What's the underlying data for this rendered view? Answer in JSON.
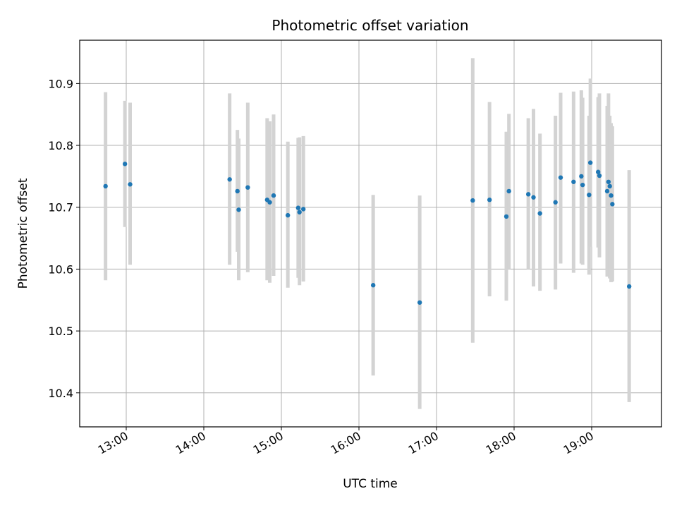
{
  "chart_data": {
    "type": "scatter",
    "title": "Photometric offset variation",
    "xlabel": "UTC time",
    "ylabel": "Photometric offset",
    "x_axis_type": "time",
    "xlim": [
      "12:24",
      "19:54"
    ],
    "ylim": [
      10.345,
      10.97
    ],
    "grid": true,
    "marker_color": "#1f77b4",
    "errorbar_color": "#d3d3d3",
    "x_ticks": [
      {
        "value": "13:00",
        "label": "13:00"
      },
      {
        "value": "14:00",
        "label": "14:00"
      },
      {
        "value": "15:00",
        "label": "15:00"
      },
      {
        "value": "16:00",
        "label": "16:00"
      },
      {
        "value": "17:00",
        "label": "17:00"
      },
      {
        "value": "18:00",
        "label": "18:00"
      },
      {
        "value": "19:00",
        "label": "19:00"
      }
    ],
    "y_ticks": [
      {
        "value": 10.4,
        "label": "10.4"
      },
      {
        "value": 10.5,
        "label": "10.5"
      },
      {
        "value": 10.6,
        "label": "10.6"
      },
      {
        "value": 10.7,
        "label": "10.7"
      },
      {
        "value": 10.8,
        "label": "10.8"
      },
      {
        "value": 10.9,
        "label": "10.9"
      }
    ],
    "points": [
      {
        "x": "12:44",
        "y": 10.734,
        "ylow": 10.582,
        "yhigh": 10.886
      },
      {
        "x": "12:59",
        "y": 10.77,
        "ylow": 10.668,
        "yhigh": 10.872
      },
      {
        "x": "13:03",
        "y": 10.737,
        "ylow": 10.607,
        "yhigh": 10.869
      },
      {
        "x": "14:20",
        "y": 10.745,
        "ylow": 10.607,
        "yhigh": 10.884
      },
      {
        "x": "14:26",
        "y": 10.726,
        "ylow": 10.628,
        "yhigh": 10.825
      },
      {
        "x": "14:27",
        "y": 10.696,
        "ylow": 10.582,
        "yhigh": 10.811
      },
      {
        "x": "14:34",
        "y": 10.732,
        "ylow": 10.595,
        "yhigh": 10.869
      },
      {
        "x": "14:49",
        "y": 10.712,
        "ylow": 10.582,
        "yhigh": 10.844
      },
      {
        "x": "14:51",
        "y": 10.708,
        "ylow": 10.578,
        "yhigh": 10.839
      },
      {
        "x": "14:54",
        "y": 10.719,
        "ylow": 10.589,
        "yhigh": 10.85
      },
      {
        "x": "15:05",
        "y": 10.687,
        "ylow": 10.57,
        "yhigh": 10.806
      },
      {
        "x": "15:13",
        "y": 10.699,
        "ylow": 10.586,
        "yhigh": 10.812
      },
      {
        "x": "15:14",
        "y": 10.692,
        "ylow": 10.574,
        "yhigh": 10.813
      },
      {
        "x": "15:17",
        "y": 10.697,
        "ylow": 10.58,
        "yhigh": 10.815
      },
      {
        "x": "16:11",
        "y": 10.574,
        "ylow": 10.428,
        "yhigh": 10.72
      },
      {
        "x": "16:47",
        "y": 10.546,
        "ylow": 10.374,
        "yhigh": 10.719
      },
      {
        "x": "17:28",
        "y": 10.711,
        "ylow": 10.481,
        "yhigh": 10.941
      },
      {
        "x": "17:41",
        "y": 10.712,
        "ylow": 10.556,
        "yhigh": 10.87
      },
      {
        "x": "17:54",
        "y": 10.685,
        "ylow": 10.549,
        "yhigh": 10.822
      },
      {
        "x": "17:56",
        "y": 10.726,
        "ylow": 10.6,
        "yhigh": 10.851
      },
      {
        "x": "18:11",
        "y": 10.721,
        "ylow": 10.6,
        "yhigh": 10.844
      },
      {
        "x": "18:15",
        "y": 10.716,
        "ylow": 10.572,
        "yhigh": 10.859
      },
      {
        "x": "18:20",
        "y": 10.69,
        "ylow": 10.565,
        "yhigh": 10.819
      },
      {
        "x": "18:32",
        "y": 10.708,
        "ylow": 10.567,
        "yhigh": 10.848
      },
      {
        "x": "18:36",
        "y": 10.748,
        "ylow": 10.609,
        "yhigh": 10.885
      },
      {
        "x": "18:46",
        "y": 10.741,
        "ylow": 10.594,
        "yhigh": 10.887
      },
      {
        "x": "18:52",
        "y": 10.75,
        "ylow": 10.609,
        "yhigh": 10.889
      },
      {
        "x": "18:53",
        "y": 10.736,
        "ylow": 10.607,
        "yhigh": 10.877
      },
      {
        "x": "18:58",
        "y": 10.72,
        "ylow": 10.591,
        "yhigh": 10.848
      },
      {
        "x": "18:59",
        "y": 10.772,
        "ylow": 10.636,
        "yhigh": 10.908
      },
      {
        "x": "19:05",
        "y": 10.757,
        "ylow": 10.635,
        "yhigh": 10.878
      },
      {
        "x": "19:06",
        "y": 10.751,
        "ylow": 10.619,
        "yhigh": 10.884
      },
      {
        "x": "19:12",
        "y": 10.726,
        "ylow": 10.588,
        "yhigh": 10.864
      },
      {
        "x": "19:13",
        "y": 10.741,
        "ylow": 10.596,
        "yhigh": 10.884
      },
      {
        "x": "19:14",
        "y": 10.734,
        "ylow": 10.585,
        "yhigh": 10.848
      },
      {
        "x": "19:15",
        "y": 10.719,
        "ylow": 10.579,
        "yhigh": 10.836
      },
      {
        "x": "19:16",
        "y": 10.705,
        "ylow": 10.58,
        "yhigh": 10.831
      },
      {
        "x": "19:29",
        "y": 10.572,
        "ylow": 10.385,
        "yhigh": 10.76
      }
    ]
  }
}
